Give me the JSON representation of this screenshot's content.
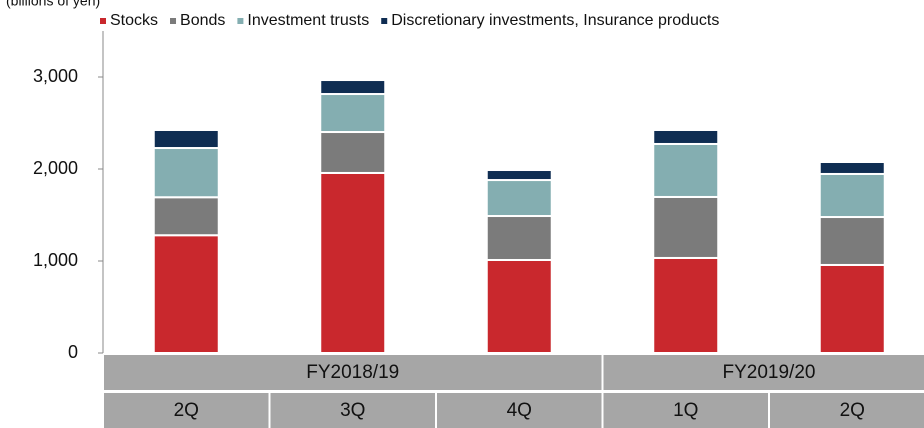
{
  "chart_data": {
    "type": "stacked-bar",
    "y_axis_label": "(billions of yen)",
    "groups": [
      {
        "name": "FY2018/19",
        "categories": [
          "2Q",
          "3Q",
          "4Q"
        ]
      },
      {
        "name": "FY2019/20",
        "categories": [
          "1Q",
          "2Q"
        ]
      }
    ],
    "series": [
      {
        "name": "Stocks",
        "color": "#c9282d",
        "values": [
          1280,
          1957,
          1011,
          1033,
          957
        ]
      },
      {
        "name": "Bonds",
        "color": "#7b7b7b",
        "values": [
          413,
          445,
          478,
          663,
          521
        ]
      },
      {
        "name": "Investment trusts",
        "color": "#84aeb1",
        "values": [
          535,
          413,
          391,
          576,
          468
        ]
      },
      {
        "name": "Discretionary investments, Insurance products",
        "color": "#0f2d52",
        "values": [
          196,
          152,
          109,
          152,
          130
        ]
      }
    ],
    "ylim": [
      0,
      3500
    ],
    "yticks": [
      0,
      {
        "value": 1000,
        "label": "1,000"
      },
      {
        "value": 2000,
        "label": "2,000"
      },
      {
        "value": 3000,
        "label": "3,000"
      }
    ]
  }
}
